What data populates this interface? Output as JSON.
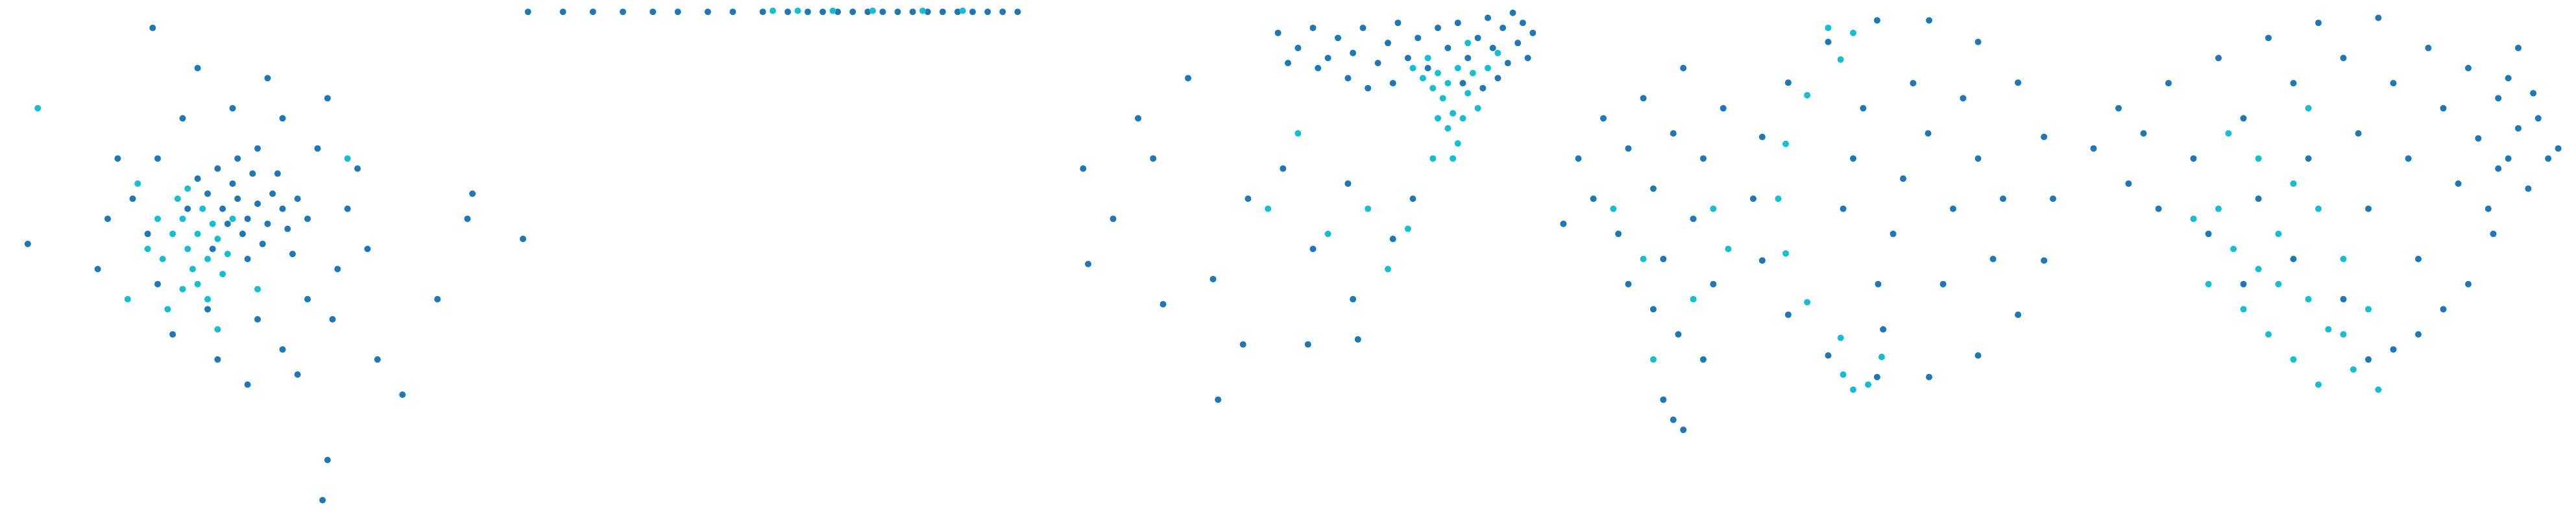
{
  "chart_data": [
    {
      "type": "scatter",
      "xlim": [
        0,
        100
      ],
      "ylim": [
        0,
        100
      ],
      "series": [
        {
          "color": "#1f77b4",
          "x": [
            43,
            46,
            48,
            50,
            52,
            45,
            40,
            47,
            53,
            55,
            49,
            44,
            51,
            56,
            42,
            58,
            38,
            46,
            54,
            48,
            60,
            36,
            50,
            41,
            57,
            30,
            28,
            35,
            45,
            55,
            62,
            68,
            66,
            60,
            50,
            40,
            30,
            25,
            20,
            22,
            38,
            52,
            64,
            70,
            72,
            65,
            55,
            42,
            33,
            18,
            58,
            48,
            64,
            63,
            79,
            93,
            86,
            74,
            92,
            4,
            29
          ],
          "values": [
            60,
            62,
            58,
            61,
            57,
            65,
            63,
            55,
            63,
            60,
            67,
            57,
            53,
            56,
            68,
            62,
            66,
            70,
            67,
            50,
            58,
            60,
            72,
            52,
            51,
            70,
            55,
            78,
            80,
            78,
            72,
            60,
            48,
            42,
            38,
            40,
            45,
            62,
            58,
            70,
            88,
            86,
            82,
            68,
            52,
            38,
            32,
            30,
            35,
            48,
            27,
            25,
            10,
            2,
            23,
            63,
            42,
            30,
            58,
            53,
            96
          ]
        },
        {
          "color": "#17becf",
          "x": [
            38,
            36,
            40,
            35,
            42,
            39,
            33,
            37,
            41,
            34,
            44,
            38,
            31,
            36,
            43,
            30,
            40,
            35,
            28,
            45,
            32,
            26,
            42,
            6,
            68,
            24,
            50
          ],
          "values": [
            55,
            52,
            50,
            58,
            54,
            60,
            55,
            48,
            57,
            62,
            51,
            45,
            50,
            64,
            47,
            58,
            42,
            44,
            52,
            58,
            40,
            65,
            36,
            80,
            70,
            42,
            44
          ]
        }
      ]
    },
    {
      "type": "scatter",
      "xlim": [
        0,
        100
      ],
      "ylim": [
        0,
        100
      ],
      "series": [
        {
          "color": "#1f77b4",
          "x": [
            1,
            8,
            14,
            20,
            26,
            31,
            37,
            42,
            48,
            53,
            57,
            60,
            63,
            66,
            69,
            72,
            75,
            78,
            81,
            84,
            87,
            90,
            93,
            96,
            99,
            0
          ],
          "values": [
            99.2,
            99.2,
            99.2,
            99.2,
            99.2,
            99.2,
            99.2,
            99.2,
            99.2,
            99.2,
            99.2,
            99.2,
            99.2,
            99.2,
            99.2,
            99.2,
            99.2,
            99.2,
            99.2,
            99.2,
            99.2,
            99.2,
            99.2,
            99.2,
            99.2,
            54
          ]
        },
        {
          "color": "#17becf",
          "x": [
            50,
            55,
            62,
            70,
            80,
            88
          ],
          "values": [
            99.4,
            99.4,
            99.4,
            99.4,
            99.4,
            99.4
          ]
        }
      ]
    },
    {
      "type": "scatter",
      "xlim": [
        0,
        100
      ],
      "ylim": [
        0,
        100
      ],
      "series": [
        {
          "color": "#1f77b4",
          "x": [
            48,
            52,
            55,
            58,
            60,
            63,
            65,
            68,
            70,
            72,
            74,
            76,
            78,
            80,
            82,
            84,
            86,
            88,
            90,
            91,
            93,
            94,
            95,
            96,
            97,
            98,
            99,
            92,
            89,
            85,
            62,
            56,
            50,
            66,
            71,
            9,
            10,
            25,
            36,
            41,
            54,
            64,
            30,
            20,
            42,
            55,
            63,
            71,
            75,
            35,
            49,
            62,
            23,
            15
          ],
          "values": [
            95,
            92,
            96,
            90,
            94,
            91,
            96,
            89,
            93,
            97,
            90,
            94,
            88,
            96,
            92,
            97,
            90,
            94,
            98,
            92,
            96,
            89,
            99,
            93,
            97,
            90,
            95,
            86,
            84,
            85,
            86,
            88,
            89,
            84,
            85,
            68,
            49,
            41,
            22,
            33,
            33,
            34,
            86,
            78,
            62,
            52,
            42,
            54,
            62,
            46,
            68,
            65,
            70,
            58
          ]
        },
        {
          "color": "#17becf",
          "x": [
            78,
            80,
            82,
            84,
            81,
            83,
            79,
            86,
            85,
            77,
            87,
            82,
            88,
            84,
            80,
            90,
            75,
            86,
            92,
            83,
            79,
            58,
            70,
            66,
            52,
            74,
            46
          ],
          "values": [
            90,
            87,
            85,
            88,
            82,
            79,
            84,
            83,
            78,
            86,
            87,
            76,
            80,
            73,
            78,
            88,
            88,
            93,
            91,
            70,
            70,
            55,
            48,
            60,
            75,
            56,
            60
          ]
        }
      ]
    },
    {
      "type": "scatter",
      "xlim": [
        0,
        100
      ],
      "ylim": [
        0,
        100
      ],
      "series": [
        {
          "color": "#1f77b4",
          "x": [
            100,
            98.2,
            93,
            85,
            75.2,
            64.8,
            55,
            47,
            41.8,
            40,
            41.8,
            47,
            55,
            64.8,
            75.2,
            85,
            93,
            98.2,
            60,
            68,
            75,
            80,
            65,
            72,
            85,
            88,
            58,
            78,
            70,
            62,
            82,
            90,
            66,
            5,
            8,
            10,
            13,
            15,
            18,
            20,
            22,
            24,
            26,
            28,
            30,
            32,
            34,
            20,
            25,
            15,
            30,
            22,
            26,
            24,
            2
          ],
          "values": [
            62,
            74.3,
            85.1,
            93.2,
            97.5,
            97.5,
            93.2,
            85.1,
            74.3,
            62,
            49.7,
            38.9,
            30.8,
            26.5,
            26.5,
            30.8,
            38.9,
            49.7,
            70,
            55,
            75,
            60,
            45,
            85,
            70,
            50,
            60,
            45,
            66,
            80,
            82,
            62,
            36,
            70,
            62,
            78,
            55,
            72,
            82,
            64,
            50,
            75,
            88,
            58,
            70,
            45,
            80,
            40,
            35,
            45,
            30,
            22,
            16,
            18,
            57
          ]
        },
        {
          "color": "#17becf",
          "x": [
            57.5,
            50.8,
            46.5,
            45,
            46.5,
            50.8,
            57.5,
            65.7,
            60,
            63,
            58,
            12,
            18,
            28,
            20,
            32,
            35,
            55,
            60
          ],
          "values": [
            89.7,
            82.6,
            72.9,
            62,
            51.1,
            41.4,
            34.3,
            30.5,
            24,
            25,
            27,
            60,
            50,
            42,
            30,
            60,
            52,
            96,
            95
          ]
        }
      ]
    },
    {
      "type": "scatter",
      "xlim": [
        0,
        100
      ],
      "ylim": [
        0,
        100
      ],
      "series": [
        {
          "color": "#1f77b4",
          "x": [
            5,
            10,
            12,
            15,
            18,
            20,
            25,
            28,
            30,
            35,
            38,
            40,
            45,
            48,
            50,
            55,
            58,
            60,
            62,
            65,
            68,
            70,
            72,
            75,
            78,
            80,
            82,
            84,
            86,
            88,
            90,
            92,
            94,
            96,
            98,
            85,
            80,
            75,
            70,
            65,
            60,
            55,
            45,
            35,
            88,
            93,
            90,
            86
          ],
          "values": [
            72,
            80,
            65,
            75,
            60,
            85,
            70,
            55,
            90,
            78,
            62,
            94,
            85,
            70,
            97,
            90,
            75,
            60,
            98,
            85,
            70,
            50,
            92,
            80,
            65,
            88,
            74,
            60,
            82,
            70,
            92,
            64,
            78,
            70,
            72,
            55,
            45,
            40,
            35,
            32,
            30,
            42,
            50,
            45,
            86,
            83,
            76,
            68
          ]
        },
        {
          "color": "#17becf",
          "x": [
            30,
            33,
            35,
            38,
            40,
            42,
            45,
            48,
            50,
            52,
            55,
            57,
            60,
            62,
            45,
            38,
            32,
            50,
            28,
            42,
            55,
            25,
            48
          ],
          "values": [
            60,
            52,
            40,
            48,
            35,
            55,
            30,
            42,
            25,
            36,
            50,
            28,
            40,
            24,
            65,
            70,
            75,
            60,
            45,
            45,
            35,
            58,
            80
          ]
        }
      ]
    }
  ]
}
